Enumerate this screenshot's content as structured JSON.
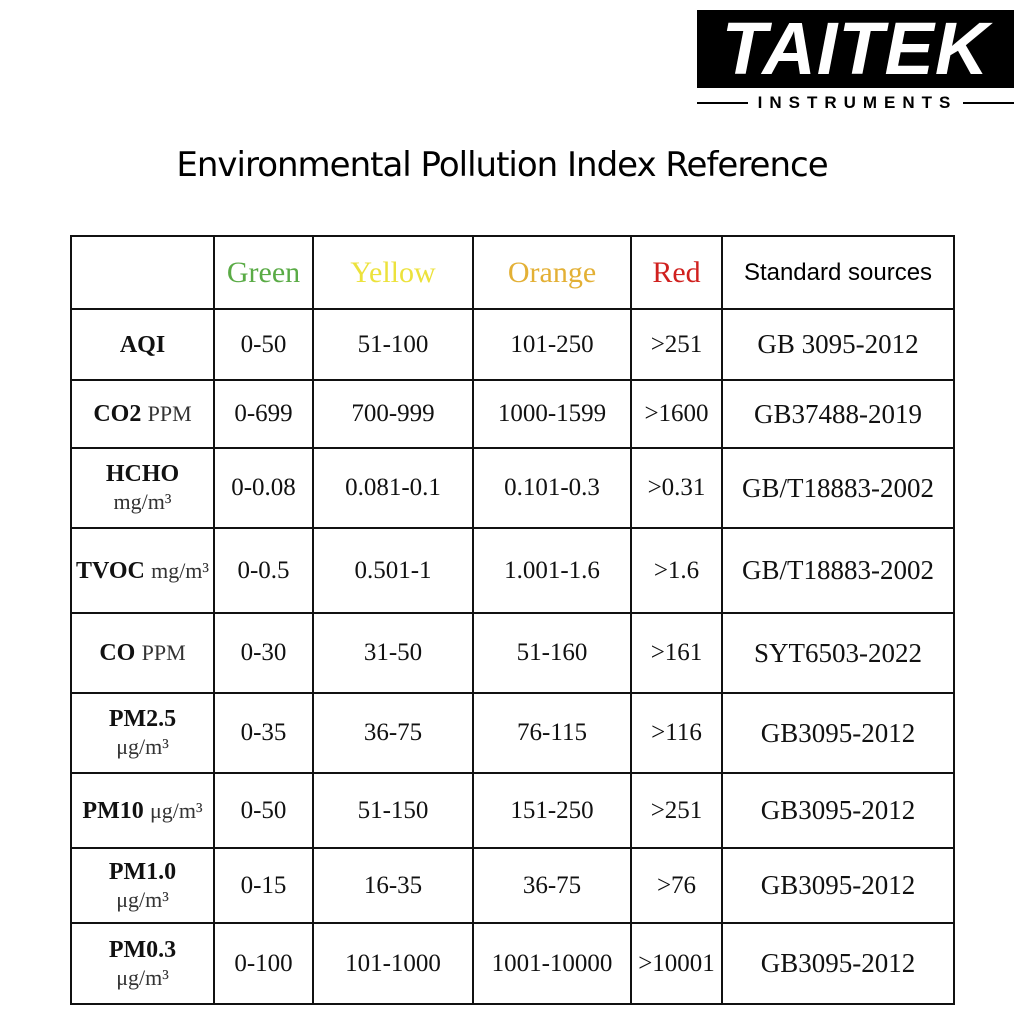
{
  "logo": {
    "brand": "TAITEK",
    "sub": "INSTRUMENTS"
  },
  "title": "Environmental Pollution Index Reference",
  "table": {
    "headers": [
      "Green",
      "Yellow",
      "Orange",
      "Red",
      "Standard sources"
    ],
    "header_colors": [
      "#5aab46",
      "#ece23c",
      "#e3b035",
      "#d0201e",
      "#000000"
    ],
    "rows": [
      {
        "name": "AQI",
        "cells": [
          "0-50",
          "51-100",
          "101-250",
          ">251",
          "GB 3095-2012"
        ]
      },
      {
        "name": "CO2",
        "unit": "PPM",
        "cells": [
          "0-699",
          "700-999",
          "1000-1599",
          ">1600",
          "GB37488-2019"
        ]
      },
      {
        "name": "HCHO",
        "unit": "mg/m³",
        "stack": true,
        "cells": [
          "0-0.08",
          "0.081-0.1",
          "0.101-0.3",
          ">0.31",
          "GB/T18883-2002"
        ]
      },
      {
        "name": "TVOC",
        "unit": "mg/m³",
        "cells": [
          "0-0.5",
          "0.501-1",
          "1.001-1.6",
          ">1.6",
          "GB/T18883-2002"
        ]
      },
      {
        "name": "CO",
        "unit": "PPM",
        "cells": [
          "0-30",
          "31-50",
          "51-160",
          ">161",
          "SYT6503-2022"
        ]
      },
      {
        "name": "PM2.5",
        "unit": "μg/m³",
        "stack": true,
        "cells": [
          "0-35",
          "36-75",
          "76-115",
          ">116",
          "GB3095-2012"
        ]
      },
      {
        "name": "PM10",
        "unit": "μg/m³",
        "cells": [
          "0-50",
          "51-150",
          "151-250",
          ">251",
          "GB3095-2012"
        ]
      },
      {
        "name": "PM1.0",
        "unit": "μg/m³",
        "stack": true,
        "cells": [
          "0-15",
          "16-35",
          "36-75",
          ">76",
          "GB3095-2012"
        ]
      },
      {
        "name": "PM0.3",
        "unit": "μg/m³",
        "stack": true,
        "cells": [
          "0-100",
          "101-1000",
          "1001-10000",
          ">10001",
          "GB3095-2012"
        ]
      }
    ]
  }
}
